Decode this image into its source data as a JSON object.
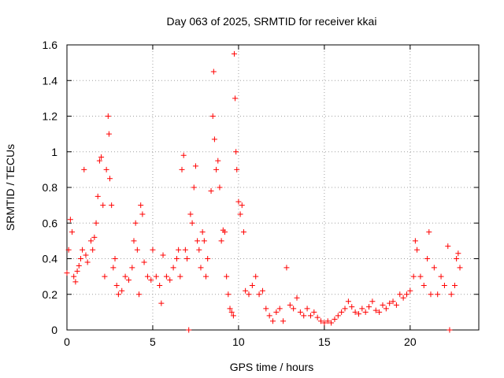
{
  "chart_data": {
    "type": "scatter",
    "title": "Day 063 of 2025, SRMTID for receiver kkai",
    "xlabel": "GPS time / hours",
    "ylabel": "SRMTID / TECUs",
    "xlim": [
      0,
      24
    ],
    "ylim": [
      0,
      1.6
    ],
    "xticks": [
      0,
      5,
      10,
      15,
      20
    ],
    "yticks": [
      0,
      0.2,
      0.4,
      0.6,
      0.8,
      1,
      1.2,
      1.4,
      1.6
    ],
    "xtick_labels": [
      "0",
      "5",
      "10",
      "15",
      "20"
    ],
    "ytick_labels": [
      "0",
      "0.2",
      "0.4",
      "0.6",
      "0.8",
      "1",
      "1.2",
      "1.4",
      "1.6"
    ],
    "grid": true,
    "marker": "plus",
    "color": "#ff0000",
    "series": [
      {
        "name": "SRMTID",
        "points": [
          [
            0.0,
            0.32
          ],
          [
            0.1,
            0.45
          ],
          [
            0.2,
            0.62
          ],
          [
            0.3,
            0.55
          ],
          [
            0.4,
            0.3
          ],
          [
            0.5,
            0.27
          ],
          [
            0.6,
            0.33
          ],
          [
            0.7,
            0.36
          ],
          [
            0.8,
            0.4
          ],
          [
            0.9,
            0.45
          ],
          [
            1.0,
            0.9
          ],
          [
            1.1,
            0.42
          ],
          [
            1.2,
            0.38
          ],
          [
            1.4,
            0.5
          ],
          [
            1.5,
            0.45
          ],
          [
            1.6,
            0.52
          ],
          [
            1.7,
            0.6
          ],
          [
            1.8,
            0.75
          ],
          [
            1.9,
            0.95
          ],
          [
            2.0,
            0.97
          ],
          [
            2.1,
            0.7
          ],
          [
            2.2,
            0.3
          ],
          [
            2.3,
            0.9
          ],
          [
            2.4,
            1.2
          ],
          [
            2.45,
            1.1
          ],
          [
            2.5,
            0.85
          ],
          [
            2.6,
            0.7
          ],
          [
            2.7,
            0.35
          ],
          [
            2.8,
            0.4
          ],
          [
            2.9,
            0.25
          ],
          [
            3.0,
            0.2
          ],
          [
            3.2,
            0.22
          ],
          [
            3.4,
            0.3
          ],
          [
            3.6,
            0.28
          ],
          [
            3.8,
            0.35
          ],
          [
            3.9,
            0.5
          ],
          [
            4.0,
            0.6
          ],
          [
            4.1,
            0.45
          ],
          [
            4.2,
            0.2
          ],
          [
            4.3,
            0.7
          ],
          [
            4.4,
            0.65
          ],
          [
            4.5,
            0.38
          ],
          [
            4.7,
            0.3
          ],
          [
            4.9,
            0.28
          ],
          [
            5.0,
            0.45
          ],
          [
            5.2,
            0.3
          ],
          [
            5.4,
            0.25
          ],
          [
            5.5,
            0.15
          ],
          [
            5.6,
            0.42
          ],
          [
            5.8,
            0.3
          ],
          [
            6.0,
            0.28
          ],
          [
            6.2,
            0.35
          ],
          [
            6.4,
            0.4
          ],
          [
            6.5,
            0.45
          ],
          [
            6.6,
            0.3
          ],
          [
            6.7,
            0.9
          ],
          [
            6.8,
            0.98
          ],
          [
            6.9,
            0.45
          ],
          [
            7.0,
            0.4
          ],
          [
            7.1,
            0.0
          ],
          [
            7.2,
            0.65
          ],
          [
            7.3,
            0.6
          ],
          [
            7.4,
            0.8
          ],
          [
            7.5,
            0.92
          ],
          [
            7.6,
            0.5
          ],
          [
            7.7,
            0.45
          ],
          [
            7.8,
            0.35
          ],
          [
            7.9,
            0.55
          ],
          [
            8.0,
            0.5
          ],
          [
            8.1,
            0.3
          ],
          [
            8.2,
            0.4
          ],
          [
            8.4,
            0.78
          ],
          [
            8.5,
            1.2
          ],
          [
            8.55,
            1.45
          ],
          [
            8.6,
            1.07
          ],
          [
            8.7,
            0.9
          ],
          [
            8.8,
            0.95
          ],
          [
            8.9,
            0.8
          ],
          [
            9.0,
            0.5
          ],
          [
            9.1,
            0.56
          ],
          [
            9.2,
            0.55
          ],
          [
            9.3,
            0.3
          ],
          [
            9.4,
            0.2
          ],
          [
            9.5,
            0.12
          ],
          [
            9.6,
            0.1
          ],
          [
            9.7,
            0.08
          ],
          [
            9.75,
            1.55
          ],
          [
            9.8,
            1.3
          ],
          [
            9.85,
            1.0
          ],
          [
            9.9,
            0.9
          ],
          [
            10.0,
            0.72
          ],
          [
            10.1,
            0.65
          ],
          [
            10.2,
            0.7
          ],
          [
            10.3,
            0.55
          ],
          [
            10.4,
            0.22
          ],
          [
            10.6,
            0.2
          ],
          [
            10.8,
            0.25
          ],
          [
            11.0,
            0.3
          ],
          [
            11.2,
            0.2
          ],
          [
            11.4,
            0.22
          ],
          [
            11.6,
            0.12
          ],
          [
            11.8,
            0.08
          ],
          [
            12.0,
            0.05
          ],
          [
            12.2,
            0.1
          ],
          [
            12.4,
            0.12
          ],
          [
            12.6,
            0.05
          ],
          [
            12.8,
            0.35
          ],
          [
            13.0,
            0.14
          ],
          [
            13.2,
            0.12
          ],
          [
            13.4,
            0.18
          ],
          [
            13.6,
            0.1
          ],
          [
            13.8,
            0.08
          ],
          [
            14.0,
            0.12
          ],
          [
            14.2,
            0.08
          ],
          [
            14.4,
            0.1
          ],
          [
            14.6,
            0.07
          ],
          [
            14.8,
            0.05
          ],
          [
            15.0,
            0.04
          ],
          [
            15.2,
            0.05
          ],
          [
            15.4,
            0.04
          ],
          [
            15.6,
            0.06
          ],
          [
            15.8,
            0.08
          ],
          [
            16.0,
            0.1
          ],
          [
            16.2,
            0.12
          ],
          [
            16.4,
            0.16
          ],
          [
            16.6,
            0.13
          ],
          [
            16.8,
            0.1
          ],
          [
            17.0,
            0.09
          ],
          [
            17.2,
            0.12
          ],
          [
            17.4,
            0.1
          ],
          [
            17.6,
            0.13
          ],
          [
            17.8,
            0.16
          ],
          [
            18.0,
            0.11
          ],
          [
            18.2,
            0.1
          ],
          [
            18.4,
            0.14
          ],
          [
            18.6,
            0.12
          ],
          [
            18.8,
            0.15
          ],
          [
            19.0,
            0.16
          ],
          [
            19.2,
            0.14
          ],
          [
            19.4,
            0.2
          ],
          [
            19.6,
            0.18
          ],
          [
            19.8,
            0.2
          ],
          [
            20.0,
            0.22
          ],
          [
            20.2,
            0.3
          ],
          [
            20.3,
            0.5
          ],
          [
            20.4,
            0.45
          ],
          [
            20.6,
            0.3
          ],
          [
            20.8,
            0.25
          ],
          [
            21.0,
            0.4
          ],
          [
            21.1,
            0.55
          ],
          [
            21.2,
            0.2
          ],
          [
            21.4,
            0.35
          ],
          [
            21.6,
            0.2
          ],
          [
            21.8,
            0.3
          ],
          [
            22.0,
            0.25
          ],
          [
            22.2,
            0.47
          ],
          [
            22.3,
            0.0
          ],
          [
            22.4,
            0.2
          ],
          [
            22.6,
            0.25
          ],
          [
            22.7,
            0.4
          ],
          [
            22.8,
            0.43
          ],
          [
            22.9,
            0.35
          ]
        ]
      }
    ]
  }
}
